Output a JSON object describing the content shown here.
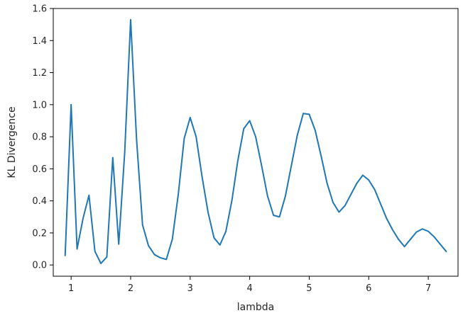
{
  "chart_data": {
    "type": "line",
    "title": "",
    "xlabel": "lambda",
    "ylabel": "KL Divergence",
    "xlim": [
      0.7,
      7.5
    ],
    "ylim": [
      -0.07,
      1.6
    ],
    "x_ticks": [
      1,
      2,
      3,
      4,
      5,
      6,
      7
    ],
    "x_tick_labels": [
      "1",
      "2",
      "3",
      "4",
      "5",
      "6",
      "7"
    ],
    "y_ticks": [
      0.0,
      0.2,
      0.4,
      0.6,
      0.8,
      1.0,
      1.2,
      1.4,
      1.6
    ],
    "y_tick_labels": [
      "0.0",
      "0.2",
      "0.4",
      "0.6",
      "0.8",
      "1.0",
      "1.2",
      "1.4",
      "1.6"
    ],
    "grid": false,
    "legend": "none",
    "line_color": "#1f77b4",
    "series": [
      {
        "x": [
          0.9,
          1.0,
          1.1,
          1.2,
          1.3,
          1.4,
          1.5,
          1.6,
          1.7,
          1.8,
          1.9,
          2.0,
          2.1,
          2.2,
          2.3,
          2.4,
          2.5,
          2.6,
          2.7,
          2.8,
          2.9,
          3.0,
          3.1,
          3.2,
          3.3,
          3.4,
          3.5,
          3.6,
          3.7,
          3.8,
          3.9,
          4.0,
          4.1,
          4.2,
          4.3,
          4.4,
          4.5,
          4.6,
          4.7,
          4.8,
          4.9,
          5.0,
          5.1,
          5.2,
          5.3,
          5.4,
          5.5,
          5.6,
          5.7,
          5.8,
          5.9,
          6.0,
          6.1,
          6.2,
          6.3,
          6.4,
          6.5,
          6.6,
          6.7,
          6.8,
          6.9,
          7.0,
          7.1,
          7.2,
          7.3
        ],
        "y": [
          0.06,
          1.0,
          0.1,
          0.29,
          0.435,
          0.085,
          0.01,
          0.05,
          0.67,
          0.13,
          0.7,
          1.53,
          0.78,
          0.25,
          0.12,
          0.065,
          0.045,
          0.035,
          0.16,
          0.44,
          0.79,
          0.92,
          0.8,
          0.55,
          0.33,
          0.17,
          0.125,
          0.21,
          0.4,
          0.65,
          0.85,
          0.9,
          0.8,
          0.62,
          0.43,
          0.31,
          0.3,
          0.43,
          0.62,
          0.81,
          0.945,
          0.94,
          0.84,
          0.68,
          0.51,
          0.39,
          0.33,
          0.37,
          0.44,
          0.51,
          0.56,
          0.53,
          0.47,
          0.38,
          0.29,
          0.22,
          0.16,
          0.115,
          0.16,
          0.205,
          0.225,
          0.21,
          0.175,
          0.13,
          0.085
        ]
      }
    ]
  }
}
